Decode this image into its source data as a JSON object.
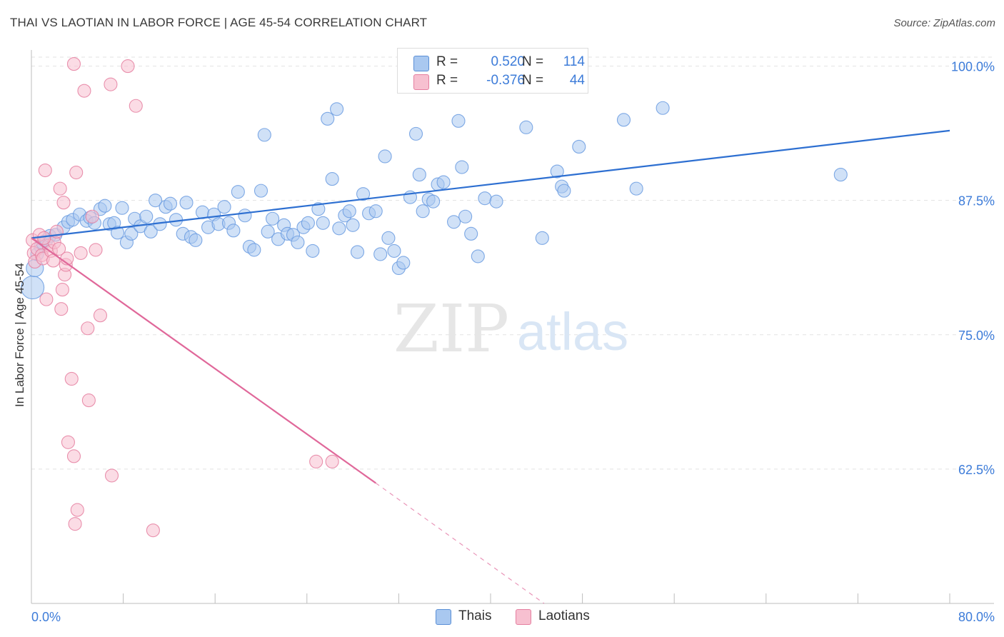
{
  "header": {
    "title": "THAI VS LAOTIAN IN LABOR FORCE | AGE 45-54 CORRELATION CHART",
    "source": "Source: ZipAtlas.com"
  },
  "watermark": {
    "zip": "ZIP",
    "atlas": "atlas"
  },
  "legend": {
    "rows": [
      {
        "r_label": "R =",
        "r_value": "0.520",
        "n_label": "N =",
        "n_value": "114",
        "fill": "#a9c8f0",
        "stroke": "#5a8fd6"
      },
      {
        "r_label": "R =",
        "r_value": "-0.376",
        "n_label": "N =",
        "n_value": "44",
        "fill": "#f7c0d0",
        "stroke": "#e57fa0"
      }
    ]
  },
  "chart_data": {
    "type": "scatter",
    "title": "THAI VS LAOTIAN IN LABOR FORCE | AGE 45-54 CORRELATION CHART",
    "xlabel": "",
    "ylabel": "In Labor Force | Age 45-54",
    "xlim": [
      0,
      80
    ],
    "ylim": [
      50,
      101.5
    ],
    "x_tick_labels": [
      "0.0%",
      "80.0%"
    ],
    "y_ticks": [
      62.5,
      75.0,
      87.5,
      100.0
    ],
    "y_tick_labels": [
      "62.5%",
      "75.0%",
      "87.5%",
      "100.0%"
    ],
    "grid": true,
    "legend_position": "top-center",
    "series": [
      {
        "name": "Thais",
        "color": "#6a9be0",
        "fill": "#a9c8f0",
        "trend": {
          "x0": 0,
          "y0": 84.0,
          "x1": 80,
          "y1": 94.0
        },
        "points": [
          [
            0.1,
            79.4,
            3
          ],
          [
            0.3,
            81.2,
            2
          ],
          [
            0.5,
            82.5,
            1
          ],
          [
            0.8,
            83.2,
            1
          ],
          [
            1.0,
            83.5,
            1
          ],
          [
            1.3,
            83.8,
            1
          ],
          [
            1.6,
            84.2,
            1
          ],
          [
            2.1,
            84.3,
            1
          ],
          [
            2.8,
            85.0,
            1
          ],
          [
            3.2,
            85.5,
            1
          ],
          [
            3.6,
            85.7,
            1
          ],
          [
            4.2,
            86.2,
            1
          ],
          [
            4.8,
            85.6,
            1
          ],
          [
            5.1,
            85.9,
            1
          ],
          [
            5.5,
            85.4,
            1
          ],
          [
            6.0,
            86.7,
            1
          ],
          [
            6.4,
            87.0,
            1
          ],
          [
            6.8,
            85.3,
            1
          ],
          [
            7.2,
            85.4,
            1
          ],
          [
            7.5,
            84.5,
            1
          ],
          [
            7.9,
            86.8,
            1
          ],
          [
            8.3,
            83.6,
            1
          ],
          [
            8.7,
            84.4,
            1
          ],
          [
            9.0,
            85.8,
            1
          ],
          [
            9.5,
            85.1,
            1
          ],
          [
            10.0,
            86.0,
            1
          ],
          [
            10.4,
            84.6,
            1
          ],
          [
            10.8,
            87.5,
            1
          ],
          [
            11.2,
            85.3,
            1
          ],
          [
            11.7,
            86.9,
            1
          ],
          [
            12.1,
            87.2,
            1
          ],
          [
            12.6,
            85.7,
            1
          ],
          [
            13.2,
            84.4,
            1
          ],
          [
            13.5,
            87.3,
            1
          ],
          [
            13.9,
            84.1,
            1
          ],
          [
            14.3,
            83.8,
            1
          ],
          [
            14.9,
            86.4,
            1
          ],
          [
            15.4,
            85.0,
            1
          ],
          [
            15.9,
            86.2,
            1
          ],
          [
            16.3,
            85.3,
            1
          ],
          [
            16.8,
            86.9,
            1
          ],
          [
            17.2,
            85.4,
            1
          ],
          [
            17.6,
            84.7,
            1
          ],
          [
            18.0,
            88.3,
            1
          ],
          [
            18.6,
            86.1,
            1
          ],
          [
            19.0,
            83.2,
            1
          ],
          [
            19.4,
            82.9,
            1
          ],
          [
            20.0,
            88.4,
            1
          ],
          [
            20.3,
            93.6,
            1
          ],
          [
            20.6,
            84.6,
            1
          ],
          [
            21.0,
            85.8,
            1
          ],
          [
            21.5,
            83.9,
            1
          ],
          [
            22.0,
            85.2,
            1
          ],
          [
            22.3,
            84.4,
            1
          ],
          [
            22.8,
            84.3,
            1
          ],
          [
            23.2,
            83.6,
            1
          ],
          [
            23.7,
            85.0,
            1
          ],
          [
            24.1,
            85.4,
            1
          ],
          [
            24.5,
            82.8,
            1
          ],
          [
            25.0,
            86.7,
            1
          ],
          [
            25.4,
            85.4,
            1
          ],
          [
            25.8,
            95.1,
            1
          ],
          [
            26.2,
            89.5,
            1
          ],
          [
            26.6,
            96.0,
            1
          ],
          [
            26.8,
            84.9,
            1
          ],
          [
            27.3,
            86.1,
            1
          ],
          [
            27.7,
            86.5,
            1
          ],
          [
            28.0,
            85.2,
            1
          ],
          [
            28.4,
            82.7,
            1
          ],
          [
            28.9,
            88.1,
            1
          ],
          [
            29.4,
            86.3,
            1
          ],
          [
            30.0,
            86.5,
            1
          ],
          [
            30.4,
            82.5,
            1
          ],
          [
            30.8,
            91.6,
            1
          ],
          [
            31.1,
            84.0,
            1
          ],
          [
            31.6,
            82.8,
            1
          ],
          [
            32.0,
            81.2,
            1
          ],
          [
            32.4,
            81.7,
            1
          ],
          [
            33.0,
            87.8,
            1
          ],
          [
            33.5,
            93.7,
            1
          ],
          [
            33.8,
            89.9,
            1
          ],
          [
            34.1,
            86.5,
            1
          ],
          [
            34.6,
            87.6,
            1
          ],
          [
            35.0,
            87.4,
            1
          ],
          [
            35.4,
            89.0,
            1
          ],
          [
            35.9,
            89.2,
            1
          ],
          [
            36.8,
            85.5,
            1
          ],
          [
            37.2,
            94.9,
            1
          ],
          [
            37.5,
            90.6,
            1
          ],
          [
            37.8,
            86.0,
            1
          ],
          [
            38.3,
            84.4,
            1
          ],
          [
            38.9,
            82.3,
            1
          ],
          [
            39.5,
            87.7,
            1
          ],
          [
            40.5,
            87.4,
            1
          ],
          [
            41.5,
            99.8,
            1
          ],
          [
            43.1,
            94.3,
            1
          ],
          [
            44.5,
            84.0,
            1
          ],
          [
            45.8,
            90.2,
            1
          ],
          [
            46.2,
            88.8,
            1
          ],
          [
            46.4,
            88.4,
            1
          ],
          [
            47.7,
            92.5,
            1
          ],
          [
            51.6,
            95.0,
            1
          ],
          [
            52.7,
            88.6,
            1
          ],
          [
            55.0,
            96.1,
            1
          ],
          [
            70.5,
            89.9,
            1
          ]
        ]
      },
      {
        "name": "Laotians",
        "color": "#e57fa0",
        "fill": "#f7c0d0",
        "trend": {
          "x0": 0,
          "y0": 84.0,
          "x1": 30,
          "y1": 61.2,
          "dash_x1": 80,
          "dash_y1": 23.0
        },
        "points": [
          [
            0.1,
            83.8,
            1
          ],
          [
            0.2,
            82.6,
            1
          ],
          [
            0.3,
            81.8,
            1
          ],
          [
            0.5,
            83.0,
            1
          ],
          [
            0.7,
            84.3,
            1
          ],
          [
            0.9,
            82.4,
            1
          ],
          [
            1.0,
            82.1,
            1
          ],
          [
            1.2,
            90.3,
            1
          ],
          [
            1.3,
            78.3,
            1
          ],
          [
            1.5,
            83.3,
            1
          ],
          [
            1.7,
            82.8,
            1
          ],
          [
            1.9,
            81.9,
            1
          ],
          [
            2.0,
            83.6,
            1
          ],
          [
            2.2,
            84.6,
            1
          ],
          [
            2.4,
            83.0,
            1
          ],
          [
            2.5,
            88.6,
            1
          ],
          [
            2.6,
            77.4,
            1
          ],
          [
            2.7,
            79.2,
            1
          ],
          [
            2.8,
            87.3,
            1
          ],
          [
            2.9,
            80.6,
            1
          ],
          [
            3.0,
            81.5,
            1
          ],
          [
            3.1,
            82.1,
            1
          ],
          [
            3.2,
            65.0,
            1
          ],
          [
            3.5,
            70.9,
            1
          ],
          [
            3.7,
            63.7,
            1
          ],
          [
            3.8,
            57.4,
            1
          ],
          [
            3.9,
            90.1,
            1
          ],
          [
            4.0,
            58.7,
            1
          ],
          [
            4.3,
            82.6,
            1
          ],
          [
            4.6,
            97.7,
            1
          ],
          [
            4.9,
            75.6,
            1
          ],
          [
            5.0,
            68.9,
            1
          ],
          [
            5.3,
            86.0,
            1
          ],
          [
            5.6,
            82.9,
            1
          ],
          [
            6.0,
            76.8,
            1
          ],
          [
            6.9,
            98.3,
            1
          ],
          [
            7.0,
            61.9,
            1
          ],
          [
            8.4,
            100.0,
            1
          ],
          [
            9.1,
            96.3,
            1
          ],
          [
            10.6,
            56.8,
            1
          ],
          [
            24.8,
            63.2,
            1
          ],
          [
            26.2,
            63.2,
            1
          ],
          [
            3.7,
            100.2,
            1
          ],
          [
            1.1,
            84.0,
            1
          ]
        ]
      }
    ]
  }
}
